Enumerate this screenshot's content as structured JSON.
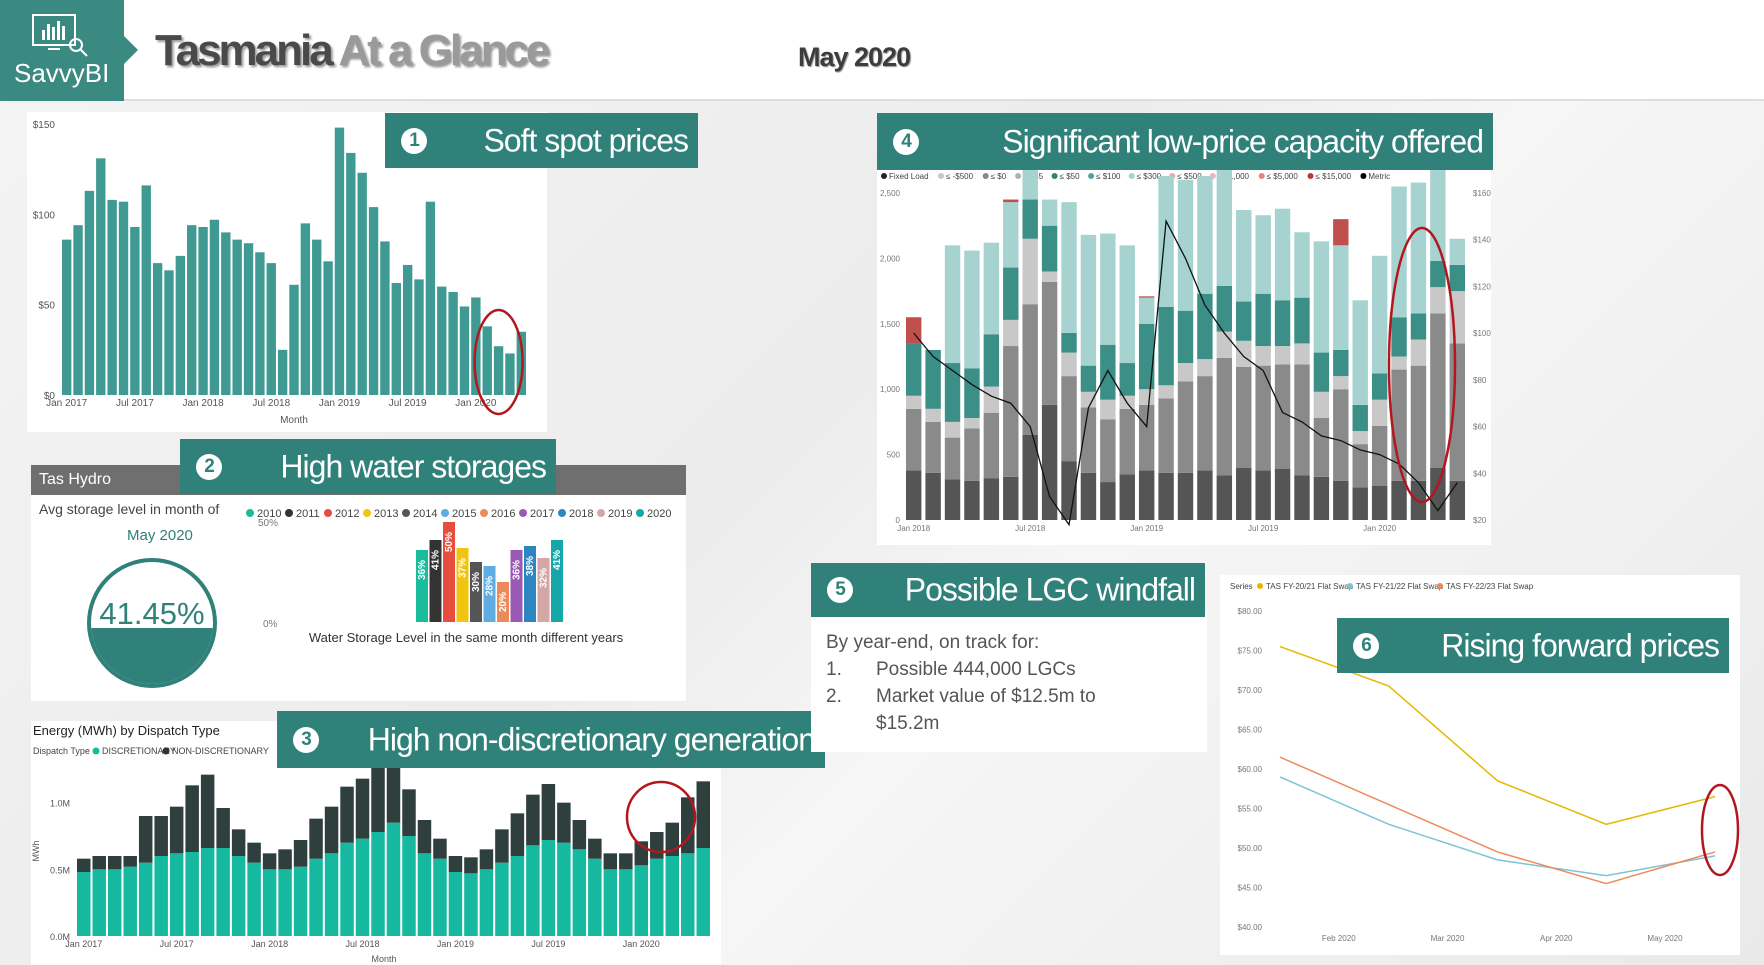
{
  "header": {
    "logo_label": "SavvyBI",
    "title_dark": "Tasmania",
    "title_light": "At a Glance",
    "date": "May 2020"
  },
  "banners": {
    "b1": {
      "num": "1",
      "text": "Soft spot prices"
    },
    "b2": {
      "num": "2",
      "text": "High water storages"
    },
    "b3": {
      "num": "3",
      "text": "High non-discretionary generation"
    },
    "b4": {
      "num": "4",
      "text": "Significant low-price capacity offered"
    },
    "b5": {
      "num": "5",
      "text": "Possible LGC windfall"
    },
    "b6": {
      "num": "6",
      "text": "Rising forward prices"
    }
  },
  "colors": {
    "teal": "#2f8179",
    "teal_light": "#3e9a92",
    "highlight_red": "#b3171e"
  },
  "icons": {
    "logo": "monitor-chart-icon"
  },
  "spot": {
    "xlabel": "Month",
    "yticks": [
      "$150",
      "$100",
      "$50",
      "$0"
    ],
    "xticks": [
      "Jan 2017",
      "Jul 2017",
      "Jan 2018",
      "Jul 2018",
      "Jan 2019",
      "Jul 2019",
      "Jan 2020"
    ]
  },
  "hydro": {
    "panel_title": "Tas Hydro",
    "kpi_label": "Avg storage level in month of",
    "kpi_month": "May 2020",
    "kpi_value": "41.45%",
    "chart_caption": "Water Storage Level in the same month different years",
    "y_top": "50%",
    "y_bottom": "0%",
    "legend": [
      "2010",
      "2011",
      "2012",
      "2013",
      "2014",
      "2015",
      "2016",
      "2017",
      "2018",
      "2019",
      "2020"
    ]
  },
  "energy": {
    "panel_title": "Energy (MWh) by Dispatch Type",
    "legend_title": "Dispatch Type",
    "legend": [
      "DISCRETIONARY",
      "NON-DISCRETIONARY"
    ],
    "ylabel": "MWh",
    "xlabel": "Month",
    "yticks": [
      "1.0M",
      "0.5M",
      "0.0M"
    ],
    "xticks": [
      "Jan 2017",
      "Jul 2017",
      "Jan 2018",
      "Jul 2018",
      "Jan 2019",
      "Jul 2019",
      "Jan 2020"
    ]
  },
  "capacity": {
    "legend": [
      "Fixed Load",
      "≤ -$500",
      "≤ $0",
      "≤ $35",
      "≤ $50",
      "≤ $100",
      "≤ $300",
      "≤ $500",
      "≤ $1,000",
      "≤ $5,000",
      "≤ $15,000",
      "Metric"
    ],
    "yticks_left": [
      "2,500",
      "2,000",
      "1,500",
      "1,000",
      "500",
      "0"
    ],
    "yticks_right": [
      "$160",
      "$140",
      "$120",
      "$100",
      "$80",
      "$60",
      "$40",
      "$20"
    ],
    "xticks": [
      "Jan 2018",
      "Jul 2018",
      "Jan 2019",
      "Jul 2019",
      "Jan 2020"
    ]
  },
  "lgc": {
    "intro": "By year-end, on track for:",
    "items": [
      {
        "n": "1.",
        "text": "Possible 444,000 LGCs"
      },
      {
        "n": "2.",
        "text": "Market value of $12.5m to"
      }
    ],
    "item2_cont": "$15.2m"
  },
  "forward": {
    "legend_title": "Series",
    "legend": [
      "TAS FY-20/21 Flat Swap",
      "TAS FY-21/22 Flat Swap",
      "TAS FY-22/23 Flat Swap"
    ],
    "yticks": [
      "$80.00",
      "$75.00",
      "$70.00",
      "$65.00",
      "$60.00",
      "$55.00",
      "$50.00",
      "$45.00",
      "$40.00"
    ],
    "xticks": [
      "Feb 2020",
      "Mar 2020",
      "Apr 2020",
      "May 2020"
    ]
  },
  "chart_data": [
    {
      "type": "bar",
      "title": "",
      "xlabel": "Month",
      "ylabel": "",
      "ylim": [
        0,
        150
      ],
      "categories": [
        "Jan 2017",
        "Feb 2017",
        "Mar 2017",
        "Apr 2017",
        "May 2017",
        "Jun 2017",
        "Jul 2017",
        "Aug 2017",
        "Sep 2017",
        "Oct 2017",
        "Nov 2017",
        "Dec 2017",
        "Jan 2018",
        "Feb 2018",
        "Mar 2018",
        "Apr 2018",
        "May 2018",
        "Jun 2018",
        "Jul 2018",
        "Aug 2018",
        "Sep 2018",
        "Oct 2018",
        "Nov 2018",
        "Dec 2018",
        "Jan 2019",
        "Feb 2019",
        "Mar 2019",
        "Apr 2019",
        "May 2019",
        "Jun 2019",
        "Jul 2019",
        "Aug 2019",
        "Sep 2019",
        "Oct 2019",
        "Nov 2019",
        "Dec 2019",
        "Jan 2020",
        "Feb 2020",
        "Mar 2020",
        "Apr 2020",
        "May 2020"
      ],
      "values": [
        86,
        94,
        113,
        131,
        108,
        107,
        93,
        116,
        73,
        69,
        77,
        94,
        93,
        97,
        90,
        86,
        84,
        79,
        73,
        25,
        61,
        95,
        86,
        74,
        148,
        134,
        123,
        104,
        85,
        62,
        72,
        64,
        107,
        60,
        57,
        49,
        54,
        38,
        27,
        23,
        35
      ]
    },
    {
      "type": "bar",
      "title": "",
      "xlabel": "Water Storage Level in the same month different years",
      "ylim": [
        0,
        50
      ],
      "categories": [
        "2010",
        "2011",
        "2012",
        "2013",
        "2014",
        "2015",
        "2016",
        "2017",
        "2018",
        "2019",
        "2020"
      ],
      "values": [
        36,
        41,
        50,
        37,
        30,
        28,
        20,
        36,
        38,
        32,
        41
      ],
      "labels": [
        "36%",
        "41%",
        "50%",
        "37%",
        "30%",
        "28%",
        "20%",
        "36%",
        "38%",
        "32%",
        "41%"
      ],
      "colors": [
        "#1abc9c",
        "#333333",
        "#e74c3c",
        "#f1c40f",
        "#555555",
        "#5dade2",
        "#eb8b5b",
        "#9b59b6",
        "#2e86c1",
        "#d5a6a6",
        "#16a8a8"
      ]
    },
    {
      "type": "bar",
      "title": "Energy (MWh) by Dispatch Type",
      "xlabel": "Month",
      "ylabel": "MWh",
      "ylim": [
        0,
        1.35
      ],
      "categories": [
        "Jan 2017",
        "Feb 2017",
        "Mar 2017",
        "Apr 2017",
        "May 2017",
        "Jun 2017",
        "Jul 2017",
        "Aug 2017",
        "Sep 2017",
        "Oct 2017",
        "Nov 2017",
        "Dec 2017",
        "Jan 2018",
        "Feb 2018",
        "Mar 2018",
        "Apr 2018",
        "May 2018",
        "Jun 2018",
        "Jul 2018",
        "Aug 2018",
        "Sep 2018",
        "Oct 2018",
        "Nov 2018",
        "Dec 2018",
        "Jan 2019",
        "Feb 2019",
        "Mar 2019",
        "Apr 2019",
        "May 2019",
        "Jun 2019",
        "Jul 2019",
        "Aug 2019",
        "Sep 2019",
        "Oct 2019",
        "Nov 2019",
        "Dec 2019",
        "Jan 2020",
        "Feb 2020",
        "Mar 2020",
        "Apr 2020",
        "May 2020"
      ],
      "series": [
        {
          "name": "DISCRETIONARY",
          "values": [
            0.48,
            0.5,
            0.5,
            0.52,
            0.55,
            0.6,
            0.62,
            0.63,
            0.66,
            0.66,
            0.6,
            0.55,
            0.5,
            0.5,
            0.52,
            0.58,
            0.62,
            0.7,
            0.73,
            0.78,
            0.85,
            0.75,
            0.62,
            0.58,
            0.48,
            0.47,
            0.5,
            0.55,
            0.6,
            0.68,
            0.72,
            0.7,
            0.65,
            0.58,
            0.5,
            0.5,
            0.53,
            0.58,
            0.6,
            0.62,
            0.66
          ]
        },
        {
          "name": "NON-DISCRETIONARY",
          "values": [
            0.1,
            0.1,
            0.1,
            0.08,
            0.35,
            0.3,
            0.35,
            0.5,
            0.55,
            0.3,
            0.2,
            0.15,
            0.12,
            0.15,
            0.2,
            0.3,
            0.35,
            0.42,
            0.45,
            0.48,
            0.5,
            0.35,
            0.25,
            0.15,
            0.12,
            0.12,
            0.15,
            0.25,
            0.32,
            0.38,
            0.42,
            0.3,
            0.22,
            0.15,
            0.12,
            0.12,
            0.18,
            0.2,
            0.25,
            0.42,
            0.5
          ]
        }
      ]
    },
    {
      "type": "bar",
      "title": "",
      "ylim": [
        0,
        2500
      ],
      "y2lim": [
        20,
        160
      ],
      "categories": [
        "Jan 2018",
        "Feb 2018",
        "Mar 2018",
        "Apr 2018",
        "May 2018",
        "Jun 2018",
        "Jul 2018",
        "Aug 2018",
        "Sep 2018",
        "Oct 2018",
        "Nov 2018",
        "Dec 2018",
        "Jan 2019",
        "Feb 2019",
        "Mar 2019",
        "Apr 2019",
        "May 2019",
        "Jun 2019",
        "Jul 2019",
        "Aug 2019",
        "Sep 2019",
        "Oct 2019",
        "Nov 2019",
        "Dec 2019",
        "Jan 2020",
        "Feb 2020",
        "Mar 2020",
        "Apr 2020",
        "May 2020"
      ],
      "series": [
        {
          "name": "Fixed Load",
          "values": [
            380,
            360,
            310,
            300,
            320,
            330,
            650,
            880,
            450,
            360,
            290,
            350,
            380,
            360,
            360,
            380,
            340,
            400,
            380,
            390,
            340,
            330,
            300,
            250,
            260,
            300,
            300,
            400,
            300
          ]
        },
        {
          "name": "≤ $0",
          "values": [
            470,
            390,
            320,
            400,
            500,
            1000,
            1000,
            940,
            650,
            500,
            480,
            500,
            500,
            570,
            700,
            720,
            900,
            770,
            800,
            800,
            850,
            450,
            700,
            330,
            460,
            850,
            880,
            1180,
            1050
          ]
        },
        {
          "name": "≤ $35",
          "values": [
            100,
            100,
            120,
            80,
            200,
            200,
            500,
            80,
            180,
            120,
            150,
            100,
            120,
            100,
            140,
            130,
            200,
            200,
            150,
            140,
            160,
            200,
            100,
            100,
            200,
            100,
            200,
            200,
            400
          ]
        },
        {
          "name": "≤ $100",
          "values": [
            400,
            450,
            450,
            380,
            400,
            400,
            300,
            350,
            150,
            200,
            420,
            250,
            500,
            600,
            400,
            500,
            350,
            300,
            400,
            350,
            350,
            300,
            200,
            200,
            200,
            300,
            200,
            200,
            200
          ]
        },
        {
          "name": "≤ $300",
          "values": [
            0,
            0,
            900,
            900,
            700,
            500,
            300,
            200,
            1000,
            1000,
            850,
            900,
            200,
            1000,
            1000,
            900,
            900,
            700,
            600,
            700,
            500,
            850,
            800,
            800,
            900,
            1000,
            1000,
            1000,
            200
          ]
        },
        {
          "name": "≤ $15,000",
          "values": [
            200,
            0,
            0,
            0,
            0,
            20,
            0,
            0,
            0,
            0,
            0,
            0,
            10,
            0,
            0,
            0,
            0,
            0,
            0,
            0,
            0,
            0,
            200,
            0,
            0,
            0,
            0,
            0,
            0
          ]
        }
      ],
      "line": {
        "name": "Metric",
        "values": [
          100,
          90,
          84,
          78,
          73,
          70,
          60,
          30,
          18,
          68,
          84,
          70,
          60,
          148,
          132,
          112,
          100,
          90,
          84,
          66,
          62,
          56,
          54,
          50,
          48,
          44,
          36,
          24,
          36
        ]
      }
    },
    {
      "type": "line",
      "title": "",
      "ylim": [
        40,
        80
      ],
      "x": [
        "Jan 2020",
        "Feb 2020",
        "Mar 2020",
        "Apr 2020",
        "May 2020"
      ],
      "series": [
        {
          "name": "TAS FY-20/21 Flat Swap",
          "values": [
            75.5,
            70.5,
            58.5,
            53.0,
            56.5
          ]
        },
        {
          "name": "TAS FY-21/22 Flat Swap",
          "values": [
            59.0,
            53.0,
            48.5,
            46.5,
            49.0
          ]
        },
        {
          "name": "TAS FY-22/23 Flat Swap",
          "values": [
            61.5,
            55.5,
            49.5,
            45.5,
            49.5
          ]
        }
      ]
    }
  ]
}
